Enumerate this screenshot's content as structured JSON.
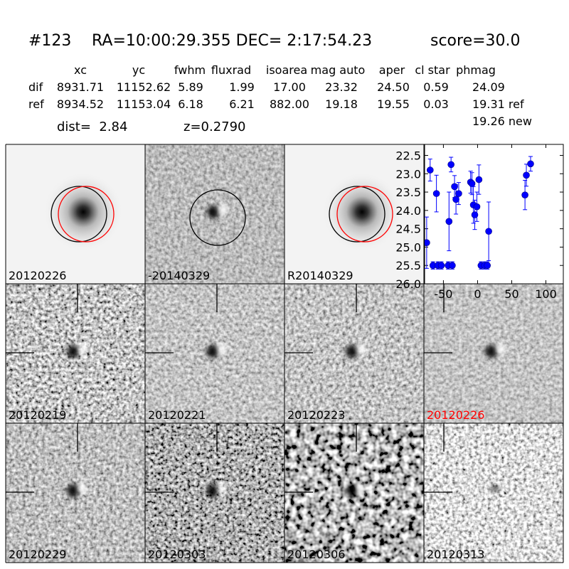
{
  "header": {
    "id": "#123",
    "coords": "RA=10:00:29.355 DEC= 2:17:54.23",
    "score": "score=30.0"
  },
  "table": {
    "columns": [
      "xc",
      "yc",
      "fwhm",
      "fluxrad",
      "isoarea",
      "mag auto",
      "aper",
      "cl star",
      "phmag"
    ],
    "rows": [
      [
        "dif",
        "8931.71",
        "11152.62",
        "5.89",
        "1.99",
        "17.00",
        "23.32",
        "24.50",
        "0.59",
        "24.09"
      ],
      [
        "ref",
        "8934.52",
        "11153.04",
        "6.18",
        "6.21",
        "882.00",
        "19.18",
        "19.55",
        "0.03",
        "19.31 ref"
      ]
    ],
    "note": "19.26 new"
  },
  "info": {
    "dist": "dist=  2.84",
    "z": "z=0.2790"
  },
  "stamps": [
    {
      "label": "20120226"
    },
    {
      "label": "-20140329"
    },
    {
      "label": "R20140329"
    },
    {
      "label": "20120219"
    },
    {
      "label": "20120221"
    },
    {
      "label": "20120223"
    },
    {
      "label": "20120226",
      "color": "#ff0000"
    },
    {
      "label": "20120229"
    },
    {
      "label": "20120303"
    },
    {
      "label": "20120306"
    },
    {
      "label": "20120313"
    }
  ],
  "chart_data": {
    "type": "scatter",
    "color": "#0000ff",
    "x": [
      -74.5,
      -69.4,
      -65.3,
      -60.2,
      -58,
      -53,
      -43,
      -41.8,
      -38.8,
      -37,
      -33.7,
      -31.6,
      -27.6,
      -10.2,
      -8.2,
      -6.1,
      -4.1,
      -1,
      2,
      5.1,
      10.2,
      14.3,
      16.3,
      69.4,
      71.4,
      77.6
    ],
    "values": [
      24.88,
      22.9,
      25.5,
      23.54,
      25.5,
      25.5,
      25.5,
      24.3,
      22.75,
      25.5,
      23.35,
      23.7,
      23.54,
      23.23,
      23.27,
      23.85,
      24.12,
      23.9,
      23.16,
      25.5,
      25.5,
      25.5,
      24.57,
      23.58,
      23.04,
      22.73
    ],
    "errors": [
      0.7,
      0.3,
      0.1,
      0.5,
      0.1,
      0.1,
      0.1,
      0.8,
      0.2,
      0.1,
      0.3,
      0.4,
      0.3,
      0.3,
      0.3,
      0.5,
      0.4,
      0.4,
      0.4,
      0.1,
      0.1,
      0.1,
      0.8,
      0.4,
      0.3,
      0.2
    ],
    "xlim": [
      -77.5,
      125.5
    ],
    "ylim": [
      26.0,
      22.2
    ],
    "xticks": [
      -50,
      0,
      50,
      100
    ],
    "yticks": [
      22.5,
      {
        "value": 23,
        "label": "23.0"
      },
      23.5,
      {
        "value": 24,
        "label": "24.0"
      },
      24.5,
      {
        "value": 25,
        "label": "25.0"
      },
      25.5,
      {
        "value": 26,
        "label": "26.0"
      }
    ]
  }
}
